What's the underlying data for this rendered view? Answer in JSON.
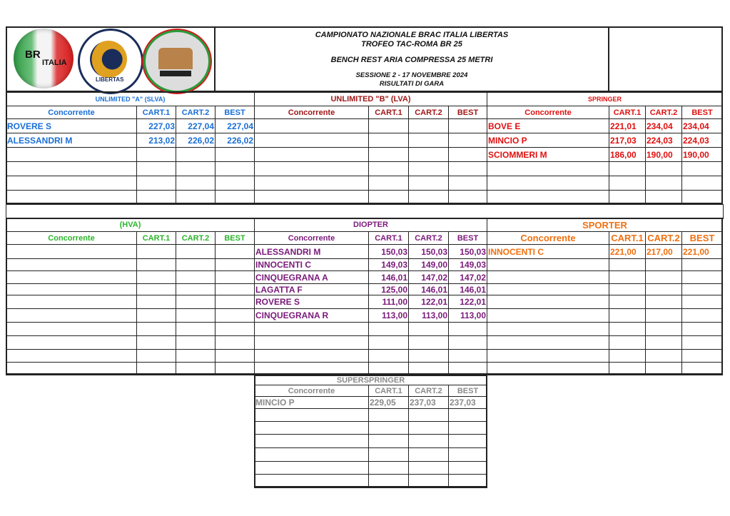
{
  "header": {
    "line1": "CAMPIONATO NAZIONALE  BRAC ITALIA  LIBERTAS",
    "line2": "TROFEO TAC-ROMA BR 25",
    "line3": "BENCH REST ARIA COMPRESSA 25 METRI",
    "line4": "SESSIONE 2  -  17 NOVEMBRE 2024",
    "line5": "RISULTATI DI GARA"
  },
  "logos": {
    "brac": "BRAC ITALIA",
    "libertas": "CENTRO NAZIONALE SPORTIVO LIBERTAS",
    "tac": "TIRO ARIA COMPRESSA ROMA"
  },
  "columns": [
    "Concorrente",
    "CART.1",
    "CART.2",
    "BEST"
  ],
  "sections": [
    {
      "title": "UNLIMITED \"A\" (SLVA)",
      "color": "#1a6fd6",
      "rows": [
        [
          "ROVERE S",
          "227,03",
          "227,04",
          "227,04"
        ],
        [
          "ALESSANDRI M",
          "213,02",
          "226,02",
          "226,02"
        ]
      ]
    },
    {
      "title": "UNLIMITED \"B\" (LVA)",
      "color": "#a01818",
      "rows": []
    },
    {
      "title": "SPRINGER",
      "color": "#e01010",
      "rows": [
        [
          "BOVE E",
          "221,01",
          "234,04",
          "234,04"
        ],
        [
          "MINCIO P",
          "217,03",
          "224,03",
          "224,03"
        ],
        [
          "SCIOMMERI M",
          "186,00",
          "190,00",
          "190,00"
        ]
      ]
    },
    {
      "title": "(HVA)",
      "color": "#2bb52b",
      "rows": []
    },
    {
      "title": "DIOPTER",
      "color": "#7a1a7a",
      "rows": [
        [
          "ALESSANDRI M",
          "150,03",
          "150,03",
          "150,03"
        ],
        [
          "INNOCENTI C",
          "149,03",
          "149,00",
          "149,03"
        ],
        [
          "CINQUEGRANA A",
          "146,01",
          "147,02",
          "147,02"
        ],
        [
          "LAGATTA F",
          "125,00",
          "146,01",
          "146,01"
        ],
        [
          "ROVERE S",
          "111,00",
          "122,01",
          "122,01"
        ],
        [
          "CINQUEGRANA R",
          "113,00",
          "113,00",
          "113,00"
        ]
      ]
    },
    {
      "title": "SPORTER",
      "color": "#f07010",
      "rows": [
        [
          "INNOCENTI C",
          "221,00",
          "217,00",
          "221,00"
        ]
      ]
    },
    {
      "title": "SUPERSPRINGER",
      "color": "#8a8a8a",
      "rows": [
        [
          "MINCIO P",
          "229,05",
          "237,03",
          "237,03"
        ]
      ]
    }
  ]
}
